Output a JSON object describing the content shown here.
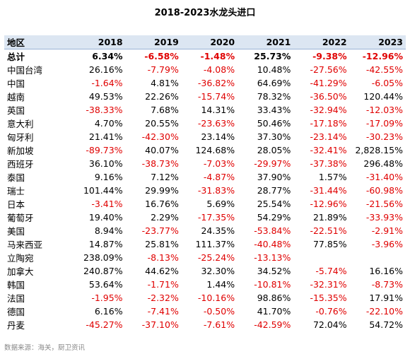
{
  "title": "2018-2023水龙头进口",
  "source": "数据来源：海关，厨卫资讯",
  "table": {
    "header": [
      "地区",
      "2018",
      "2019",
      "2020",
      "2021",
      "2022",
      "2023"
    ],
    "rows": [
      {
        "region": "总计",
        "values": [
          "6.34%",
          "-6.58%",
          "-1.48%",
          "25.73%",
          "-9.38%",
          "-12.96%"
        ]
      },
      {
        "region": "中国台湾",
        "values": [
          "26.16%",
          "-7.79%",
          "-4.08%",
          "10.48%",
          "-27.56%",
          "-42.55%"
        ]
      },
      {
        "region": "中国",
        "values": [
          "-1.64%",
          "4.81%",
          "-36.82%",
          "64.69%",
          "-41.29%",
          "-6.05%"
        ]
      },
      {
        "region": "越南",
        "values": [
          "49.53%",
          "22.26%",
          "-15.74%",
          "78.32%",
          "-36.50%",
          "120.44%"
        ]
      },
      {
        "region": "英国",
        "values": [
          "-38.33%",
          "7.68%",
          "14.31%",
          "33.43%",
          "-32.94%",
          "-12.03%"
        ]
      },
      {
        "region": "意大利",
        "values": [
          "4.70%",
          "20.55%",
          "-23.63%",
          "50.46%",
          "-17.18%",
          "-17.09%"
        ]
      },
      {
        "region": "匈牙利",
        "values": [
          "21.41%",
          "-42.30%",
          "23.14%",
          "37.30%",
          "-23.14%",
          "-30.23%"
        ]
      },
      {
        "region": "新加坡",
        "values": [
          "-89.73%",
          "40.07%",
          "124.68%",
          "28.05%",
          "-32.41%",
          "2,828.15%"
        ]
      },
      {
        "region": "西班牙",
        "values": [
          "36.10%",
          "-38.73%",
          "-7.03%",
          "-29.97%",
          "-37.38%",
          "296.48%"
        ]
      },
      {
        "region": "泰国",
        "values": [
          "9.16%",
          "7.12%",
          "-4.87%",
          "37.90%",
          "1.57%",
          "-31.40%"
        ]
      },
      {
        "region": "瑞士",
        "values": [
          "101.44%",
          "29.99%",
          "-31.83%",
          "28.77%",
          "-31.44%",
          "-60.98%"
        ]
      },
      {
        "region": "日本",
        "values": [
          "-3.41%",
          "16.76%",
          "5.69%",
          "25.54%",
          "-12.96%",
          "-21.56%"
        ]
      },
      {
        "region": "葡萄牙",
        "values": [
          "19.40%",
          "2.29%",
          "-17.35%",
          "54.29%",
          "21.89%",
          "-33.93%"
        ]
      },
      {
        "region": "美国",
        "values": [
          "8.94%",
          "-23.77%",
          "24.35%",
          "-53.84%",
          "-22.51%",
          "-2.91%"
        ]
      },
      {
        "region": "马来西亚",
        "values": [
          "14.87%",
          "25.81%",
          "111.37%",
          "-40.48%",
          "77.85%",
          "-3.96%"
        ]
      },
      {
        "region": "立陶宛",
        "values": [
          "238.09%",
          "-8.13%",
          "-25.24%",
          "-13.13%",
          "",
          ""
        ]
      },
      {
        "region": "加拿大",
        "values": [
          "240.87%",
          "44.62%",
          "32.30%",
          "34.52%",
          "-5.74%",
          "16.16%"
        ]
      },
      {
        "region": "韩国",
        "values": [
          "53.64%",
          "-1.71%",
          "1.44%",
          "-10.81%",
          "-32.31%",
          "-8.73%"
        ]
      },
      {
        "region": "法国",
        "values": [
          "-1.95%",
          "-2.32%",
          "-10.16%",
          "98.86%",
          "-15.35%",
          "17.91%"
        ]
      },
      {
        "region": "德国",
        "values": [
          "6.16%",
          "-7.41%",
          "-0.50%",
          "41.70%",
          "-0.76%",
          "-22.10%"
        ]
      },
      {
        "region": "丹麦",
        "values": [
          "-45.27%",
          "-37.10%",
          "-7.61%",
          "-42.59%",
          "72.04%",
          "54.72%"
        ]
      }
    ]
  },
  "colors": {
    "header_bg": "#dce6f2",
    "negative": "#e00000",
    "positive": "#000000"
  }
}
